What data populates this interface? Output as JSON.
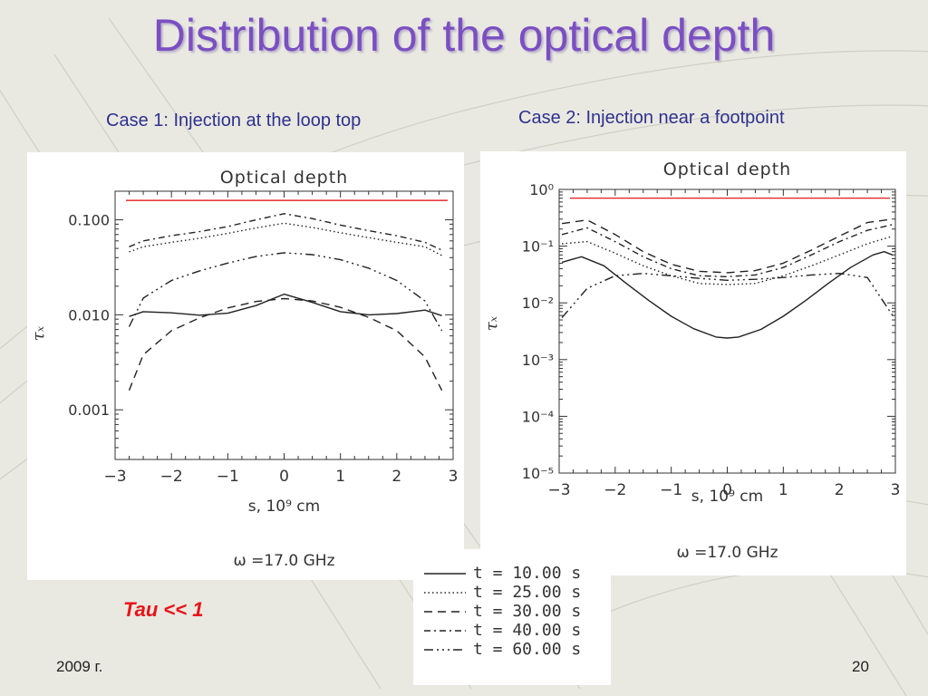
{
  "slide": {
    "title": "Distribution of the optical depth",
    "case1_label": "Case 1: Injection at the loop top",
    "case2_label": "Case 2: Injection near a footpoint",
    "note": "Tau << 1",
    "footer_left": "2009 г.",
    "footer_right": "20"
  },
  "chart_data": [
    {
      "type": "line",
      "title": "Optical depth",
      "xlabel": "s, 10⁹ cm",
      "ylabel": "τₓ",
      "footnote": "ω =17.0 GHz",
      "log_y": true,
      "xlim": [
        -3,
        3
      ],
      "ylim": [
        0.0003,
        0.2
      ],
      "x_ticks": [
        "−3",
        "−2",
        "−1",
        "0",
        "1",
        "2",
        "3"
      ],
      "y_ticks": [
        {
          "value": 0.1,
          "label": "0.100"
        },
        {
          "value": 0.01,
          "label": "0.010"
        },
        {
          "value": 0.001,
          "label": "0.001"
        }
      ],
      "reference_line": {
        "y": 0.16,
        "color": "#e00000"
      },
      "series": [
        {
          "name": "t = 10.00 s",
          "style": "solid",
          "x": [
            -2.75,
            -2.5,
            -2,
            -1.5,
            -1,
            -0.5,
            0,
            0.5,
            1,
            1.5,
            2,
            2.5,
            2.8
          ],
          "y": [
            0.0096,
            0.0108,
            0.0105,
            0.0099,
            0.0104,
            0.0125,
            0.0165,
            0.0135,
            0.0108,
            0.01,
            0.0103,
            0.0112,
            0.0098
          ]
        },
        {
          "name": "t = 25.00 s",
          "style": "dotted",
          "x": [
            -2.75,
            -2.5,
            -2,
            -1.5,
            -1,
            -0.5,
            0,
            0.5,
            1,
            1.5,
            2,
            2.5,
            2.8
          ],
          "y": [
            0.046,
            0.052,
            0.058,
            0.064,
            0.072,
            0.082,
            0.092,
            0.083,
            0.073,
            0.065,
            0.058,
            0.052,
            0.042
          ]
        },
        {
          "name": "t = 30.00 s",
          "style": "short-dash",
          "x": [
            -2.75,
            -2.5,
            -2,
            -1.5,
            -1,
            -0.5,
            0,
            0.5,
            1,
            1.5,
            2,
            2.5,
            2.8
          ],
          "y": [
            0.0016,
            0.0038,
            0.0068,
            0.0093,
            0.0118,
            0.0138,
            0.0148,
            0.014,
            0.012,
            0.0094,
            0.0068,
            0.0036,
            0.0016
          ]
        },
        {
          "name": "t = 40.00 s",
          "style": "dash-dot",
          "x": [
            -2.75,
            -2.5,
            -2,
            -1.5,
            -1,
            -0.5,
            0,
            0.5,
            1,
            1.5,
            2,
            2.5,
            2.8
          ],
          "y": [
            0.052,
            0.06,
            0.068,
            0.075,
            0.085,
            0.1,
            0.116,
            0.103,
            0.088,
            0.077,
            0.068,
            0.058,
            0.048
          ]
        },
        {
          "name": "t = 60.00 s",
          "style": "long-dash-dot",
          "x": [
            -2.75,
            -2.5,
            -2,
            -1.5,
            -1,
            -0.5,
            0,
            0.5,
            1,
            1.5,
            2,
            2.5,
            2.8
          ],
          "y": [
            0.0075,
            0.015,
            0.023,
            0.029,
            0.035,
            0.041,
            0.045,
            0.043,
            0.038,
            0.031,
            0.023,
            0.014,
            0.0068
          ]
        }
      ]
    },
    {
      "type": "line",
      "title": "Optical depth",
      "xlabel": "s, 10⁹ cm",
      "ylabel": "τₓ",
      "footnote": "ω =17.0 GHz",
      "log_y": true,
      "xlim": [
        -3,
        3
      ],
      "ylim": [
        1e-05,
        1
      ],
      "x_ticks": [
        "−3",
        "−2",
        "−1",
        "0",
        "1",
        "2",
        "3"
      ],
      "y_ticks": [
        {
          "value": 1,
          "label": "10⁰"
        },
        {
          "value": 0.1,
          "label": "10⁻¹"
        },
        {
          "value": 0.01,
          "label": "10⁻²"
        },
        {
          "value": 0.001,
          "label": "10⁻³"
        },
        {
          "value": 0.0001,
          "label": "10⁻⁴"
        },
        {
          "value": 1e-05,
          "label": "10⁻⁵"
        }
      ],
      "reference_line": {
        "y": 0.7,
        "color": "#e00000"
      },
      "series": [
        {
          "name": "t = 10.00 s",
          "style": "solid",
          "x": [
            -2.95,
            -2.6,
            -2.2,
            -1.8,
            -1.4,
            -1,
            -0.6,
            -0.2,
            0,
            0.2,
            0.6,
            1,
            1.4,
            1.8,
            2.2,
            2.6,
            2.8,
            2.95
          ],
          "y": [
            0.052,
            0.065,
            0.045,
            0.022,
            0.011,
            0.0058,
            0.0035,
            0.0025,
            0.0024,
            0.0025,
            0.0034,
            0.0058,
            0.011,
            0.022,
            0.042,
            0.07,
            0.08,
            0.07
          ]
        },
        {
          "name": "t = 25.00 s",
          "style": "dotted",
          "x": [
            -2.95,
            -2.5,
            -2,
            -1.5,
            -1,
            -0.5,
            0,
            0.5,
            1,
            1.5,
            2,
            2.5,
            2.95
          ],
          "y": [
            0.11,
            0.12,
            0.075,
            0.045,
            0.03,
            0.022,
            0.021,
            0.022,
            0.03,
            0.045,
            0.07,
            0.11,
            0.15
          ]
        },
        {
          "name": "t = 30.00 s",
          "style": "short-dash",
          "x": [
            -2.95,
            -2.5,
            -2,
            -1.5,
            -1,
            -0.5,
            0,
            0.5,
            1,
            1.5,
            2,
            2.5,
            2.95
          ],
          "y": [
            0.25,
            0.29,
            0.16,
            0.08,
            0.048,
            0.036,
            0.034,
            0.037,
            0.05,
            0.085,
            0.15,
            0.26,
            0.3
          ]
        },
        {
          "name": "t = 40.00 s",
          "style": "dash-dot",
          "x": [
            -2.95,
            -2.5,
            -2,
            -1.5,
            -1,
            -0.5,
            0,
            0.5,
            1,
            1.5,
            2,
            2.5,
            2.95
          ],
          "y": [
            0.16,
            0.21,
            0.12,
            0.065,
            0.04,
            0.03,
            0.029,
            0.031,
            0.042,
            0.07,
            0.12,
            0.19,
            0.24
          ]
        },
        {
          "name": "t = 60.00 s",
          "style": "long-dash-dot",
          "x": [
            -2.95,
            -2.5,
            -2,
            -1.5,
            -1,
            -0.5,
            0,
            0.5,
            1,
            1.5,
            2,
            2.5,
            2.95
          ],
          "y": [
            0.0055,
            0.018,
            0.03,
            0.033,
            0.03,
            0.027,
            0.025,
            0.026,
            0.028,
            0.031,
            0.033,
            0.028,
            0.006
          ]
        }
      ]
    }
  ],
  "legend": {
    "entries": [
      {
        "style": "solid",
        "label": "t  =  10.00  s"
      },
      {
        "style": "dotted",
        "label": "t  =  25.00  s"
      },
      {
        "style": "short-dash",
        "label": "t  =  30.00  s"
      },
      {
        "style": "dash-dot",
        "label": "t  =  40.00  s"
      },
      {
        "style": "long-dash-dot",
        "label": "t  =  60.00  s"
      }
    ]
  }
}
